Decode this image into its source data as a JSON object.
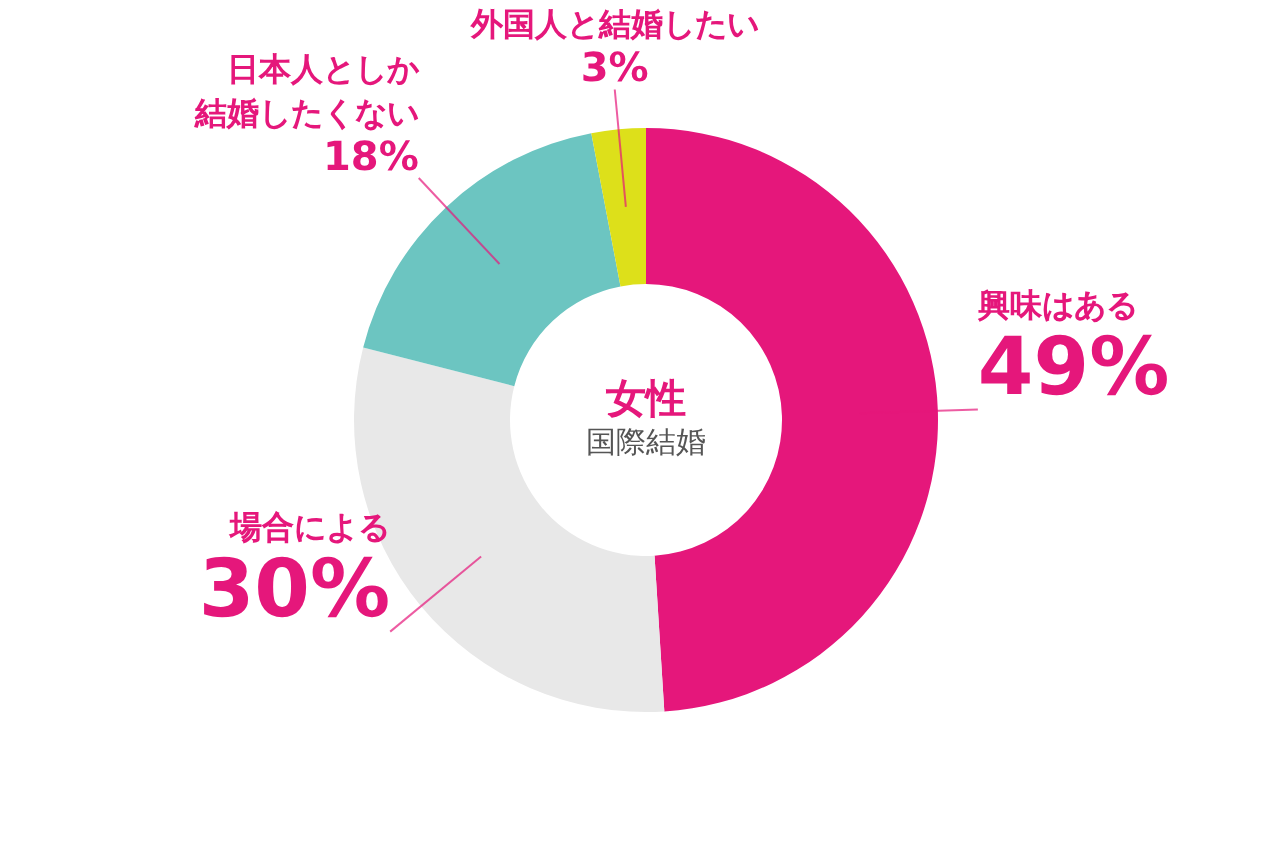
{
  "chart_data": {
    "type": "donut",
    "title": "女性",
    "subtitle": "国際結婚",
    "categories": [
      "興味はある",
      "場合による",
      "日本人としか結婚したくない",
      "外国人と結婚したい"
    ],
    "values": [
      49,
      30,
      18,
      3
    ],
    "colors": [
      "#e5177b",
      "#e8e8e8",
      "#6cc5c1",
      "#dde01a"
    ],
    "value_labels": [
      "49%",
      "30%",
      "18%",
      "3%"
    ]
  }
}
